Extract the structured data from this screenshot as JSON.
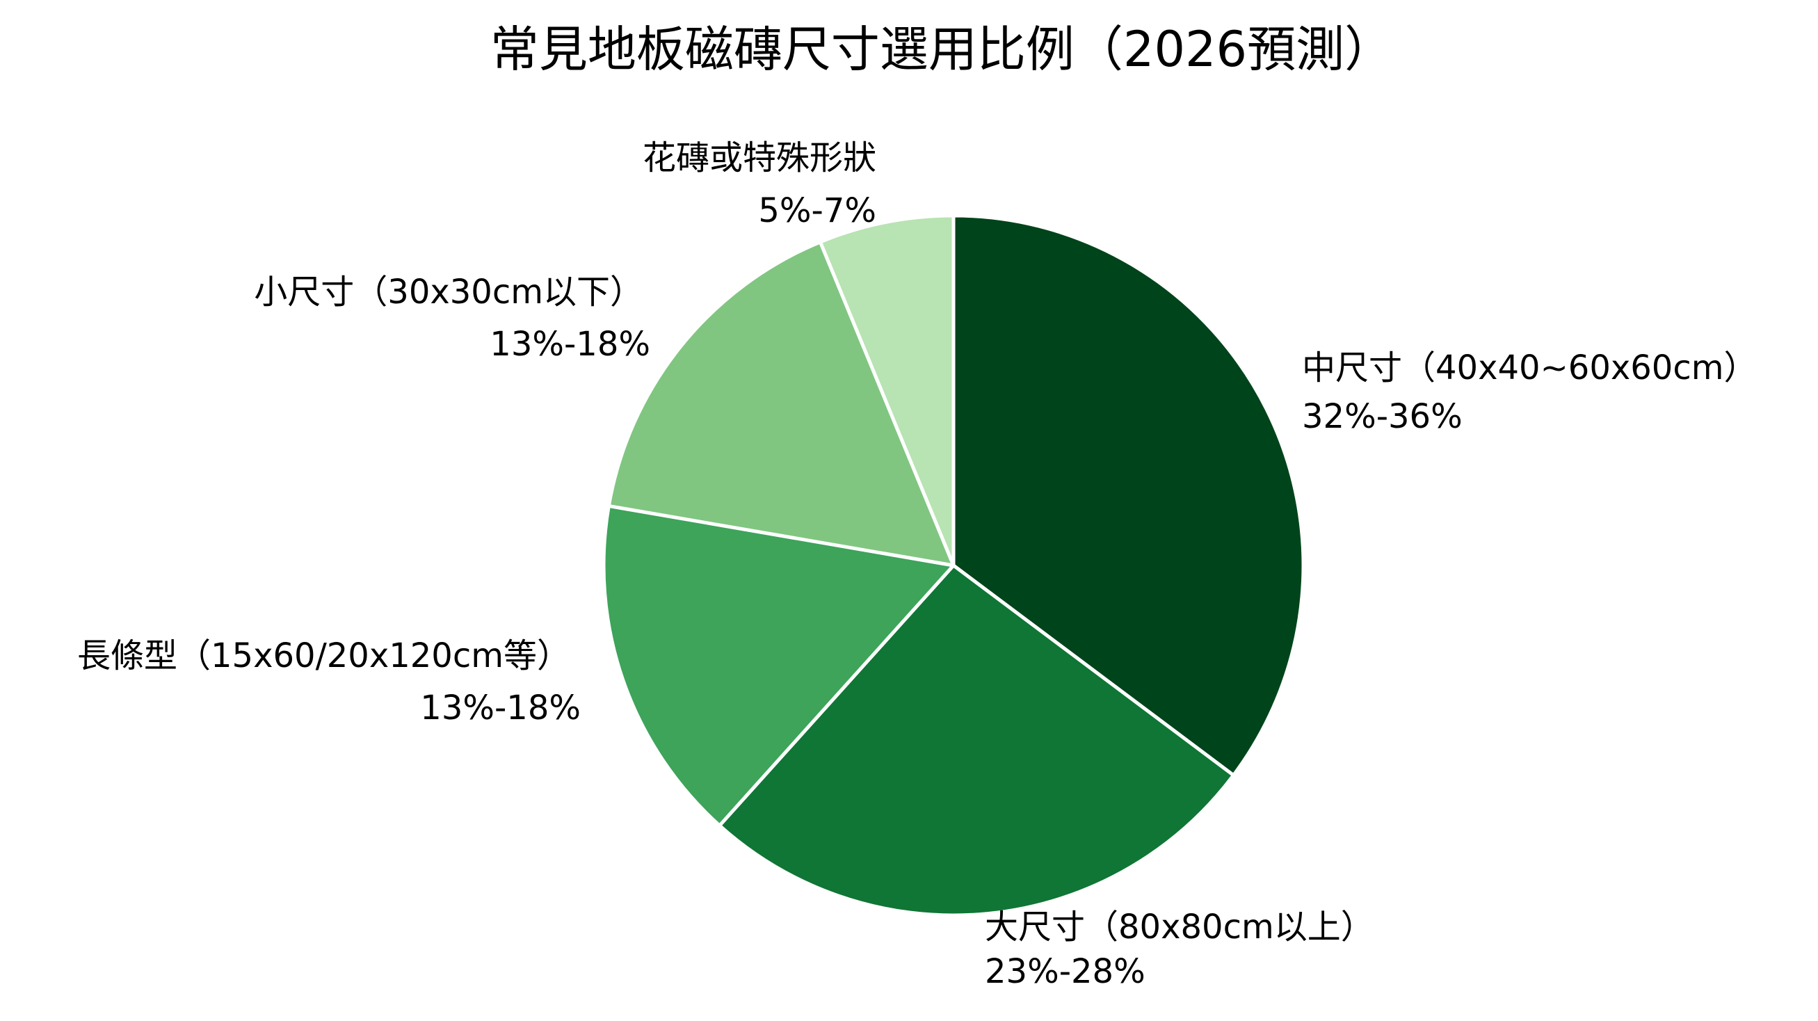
{
  "chart_data": {
    "type": "pie",
    "title": "常見地板磁磚尺寸選用比例（2026預測）",
    "start_angle": "top",
    "direction": "clockwise",
    "slices": [
      {
        "name": "中尺寸（40x40~60x60cm）",
        "range_label": "32%-36%",
        "value": 34,
        "color": "#00441b"
      },
      {
        "name": "大尺寸（80x80cm以上）",
        "range_label": "23%-28%",
        "value": 25.5,
        "color": "#0f7635"
      },
      {
        "name": "長條型（15x60/20x120cm等）",
        "range_label": "13%-18%",
        "value": 15.5,
        "color": "#3da45a"
      },
      {
        "name": "小尺寸（30x30cm以下）",
        "range_label": "13%-18%",
        "value": 15.5,
        "color": "#80c681"
      },
      {
        "name": "花磚或特殊形狀",
        "range_label": "5%-7%",
        "value": 6,
        "color": "#b8e3b2"
      }
    ]
  }
}
